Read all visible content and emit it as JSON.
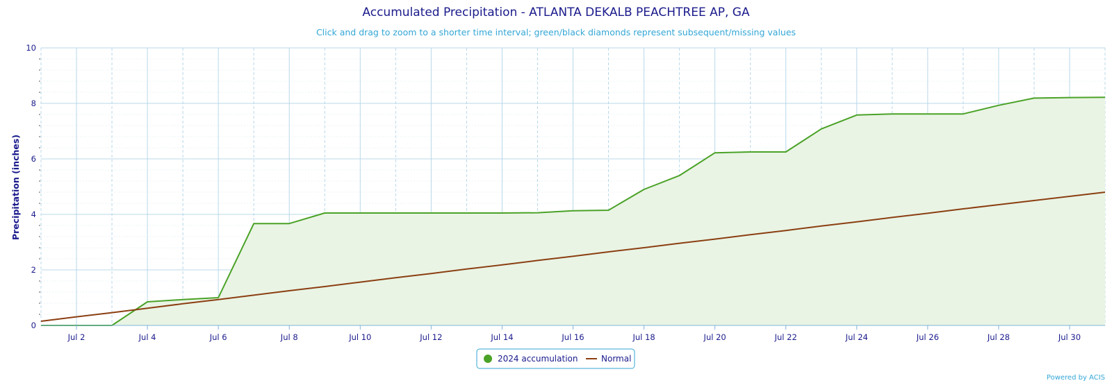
{
  "chart_data": {
    "type": "line",
    "title": "Accumulated Precipitation - ATLANTA DEKALB PEACHTREE AP, GA",
    "subtitle": "Click and drag to zoom to a shorter time interval; green/black diamonds represent subsequent/missing values",
    "ylabel": "Precipitation (inches)",
    "xlabel": "",
    "ylim": [
      0,
      10
    ],
    "y_ticks": [
      0,
      2,
      4,
      6,
      8,
      10
    ],
    "x_tick_labels": [
      "Jul 2",
      "Jul 4",
      "Jul 6",
      "Jul 8",
      "Jul 10",
      "Jul 12",
      "Jul 14",
      "Jul 16",
      "Jul 18",
      "Jul 20",
      "Jul 22",
      "Jul 24",
      "Jul 26",
      "Jul 28",
      "Jul 30"
    ],
    "x_ticks": [
      2,
      4,
      6,
      8,
      10,
      12,
      14,
      16,
      18,
      20,
      22,
      24,
      26,
      28,
      30
    ],
    "xlim": [
      1,
      31
    ],
    "grid": true,
    "legend_position": "bottom-center",
    "series": [
      {
        "name": "2024 accumulation",
        "color": "#4aa227",
        "fill": "#e9f4e4",
        "x": [
          1,
          2,
          3,
          4,
          5,
          6,
          7,
          8,
          9,
          10,
          11,
          12,
          13,
          14,
          15,
          16,
          17,
          18,
          19,
          20,
          21,
          22,
          23,
          24,
          25,
          26,
          27,
          28,
          29,
          30,
          31
        ],
        "values": [
          0.0,
          0.0,
          0.0,
          0.85,
          0.93,
          1.0,
          3.67,
          3.67,
          4.05,
          4.05,
          4.05,
          4.05,
          4.05,
          4.05,
          4.06,
          4.13,
          4.15,
          4.9,
          5.4,
          6.22,
          6.25,
          6.25,
          7.08,
          7.58,
          7.62,
          7.62,
          7.62,
          7.93,
          8.19,
          8.21,
          8.22
        ]
      },
      {
        "name": "Normal",
        "color": "#8b3e12",
        "x": [
          1,
          2,
          3,
          4,
          5,
          6,
          7,
          8,
          9,
          10,
          11,
          12,
          13,
          14,
          15,
          16,
          17,
          18,
          19,
          20,
          21,
          22,
          23,
          24,
          25,
          26,
          27,
          28,
          29,
          30,
          31
        ],
        "values": [
          0.15,
          0.31,
          0.46,
          0.62,
          0.78,
          0.93,
          1.09,
          1.25,
          1.4,
          1.56,
          1.72,
          1.87,
          2.03,
          2.18,
          2.34,
          2.49,
          2.65,
          2.8,
          2.96,
          3.11,
          3.27,
          3.42,
          3.58,
          3.73,
          3.89,
          4.04,
          4.2,
          4.35,
          4.5,
          4.65,
          4.8
        ]
      }
    ],
    "legend": [
      {
        "label": "2024 accumulation",
        "symbol": "circle",
        "color": "#4aa227"
      },
      {
        "label": "Normal",
        "symbol": "line",
        "color": "#8b3e12"
      }
    ]
  },
  "credit": "Powered by ACIS",
  "colors": {
    "grid_major": "#b8d8ea",
    "grid_minor": "#eef3f7",
    "axis_line": "#7fb4d8",
    "legend_border": "#33a6d6",
    "text": "#1a1a8c"
  }
}
